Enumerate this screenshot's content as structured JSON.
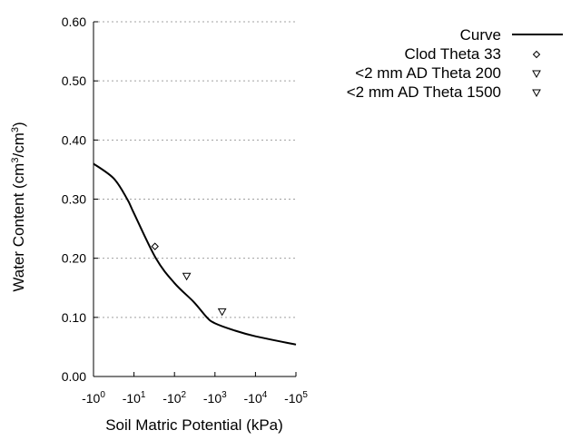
{
  "chart_data": {
    "type": "line",
    "title": "",
    "xlabel": "Soil Matric Potential (kPa)",
    "ylabel": "Water Content (cm³/cm³)",
    "ylabel_parts": {
      "pre": "Water Content (cm",
      "sup1": "3",
      "mid": "/cm",
      "sup2": "3",
      "post": ")"
    },
    "x_scale": "log (negative values)",
    "xlim": [
      -1,
      -100000
    ],
    "ylim": [
      0,
      0.6
    ],
    "x_ticks": [
      {
        "base": "-10",
        "exp": "0",
        "value": -1
      },
      {
        "base": "-10",
        "exp": "1",
        "value": -10
      },
      {
        "base": "-10",
        "exp": "2",
        "value": -100
      },
      {
        "base": "-10",
        "exp": "3",
        "value": -1000
      },
      {
        "base": "-10",
        "exp": "4",
        "value": -10000
      },
      {
        "base": "-10",
        "exp": "5",
        "value": -100000
      }
    ],
    "y_ticks": [
      "0.00",
      "0.10",
      "0.20",
      "0.30",
      "0.40",
      "0.50",
      "0.60"
    ],
    "grid": "horizontal dotted",
    "legend_placement": "top-right outside",
    "series": [
      {
        "name": "Curve",
        "kind": "line",
        "color": "#000000",
        "points": [
          [
            -1,
            0.36
          ],
          [
            -3.16,
            0.335
          ],
          [
            -6.8,
            0.3
          ],
          [
            -10,
            0.276
          ],
          [
            -34.7,
            0.2
          ],
          [
            -100,
            0.158
          ],
          [
            -300,
            0.126
          ],
          [
            -631,
            0.1
          ],
          [
            -1000,
            0.09
          ],
          [
            -3000,
            0.078
          ],
          [
            -10000,
            0.068
          ],
          [
            -100000,
            0.054
          ]
        ]
      },
      {
        "name": "Clod Theta 33",
        "kind": "scatter",
        "marker": "diamond",
        "points": [
          [
            -33,
            0.22
          ]
        ]
      },
      {
        "name": "<2 mm AD Theta 200",
        "kind": "scatter",
        "marker": "triangle-down",
        "points": [
          [
            -200,
            0.17
          ]
        ]
      },
      {
        "name": "<2 mm AD Theta 1500",
        "kind": "scatter",
        "marker": "triangle-down",
        "points": [
          [
            -1500,
            0.11
          ]
        ]
      }
    ]
  }
}
